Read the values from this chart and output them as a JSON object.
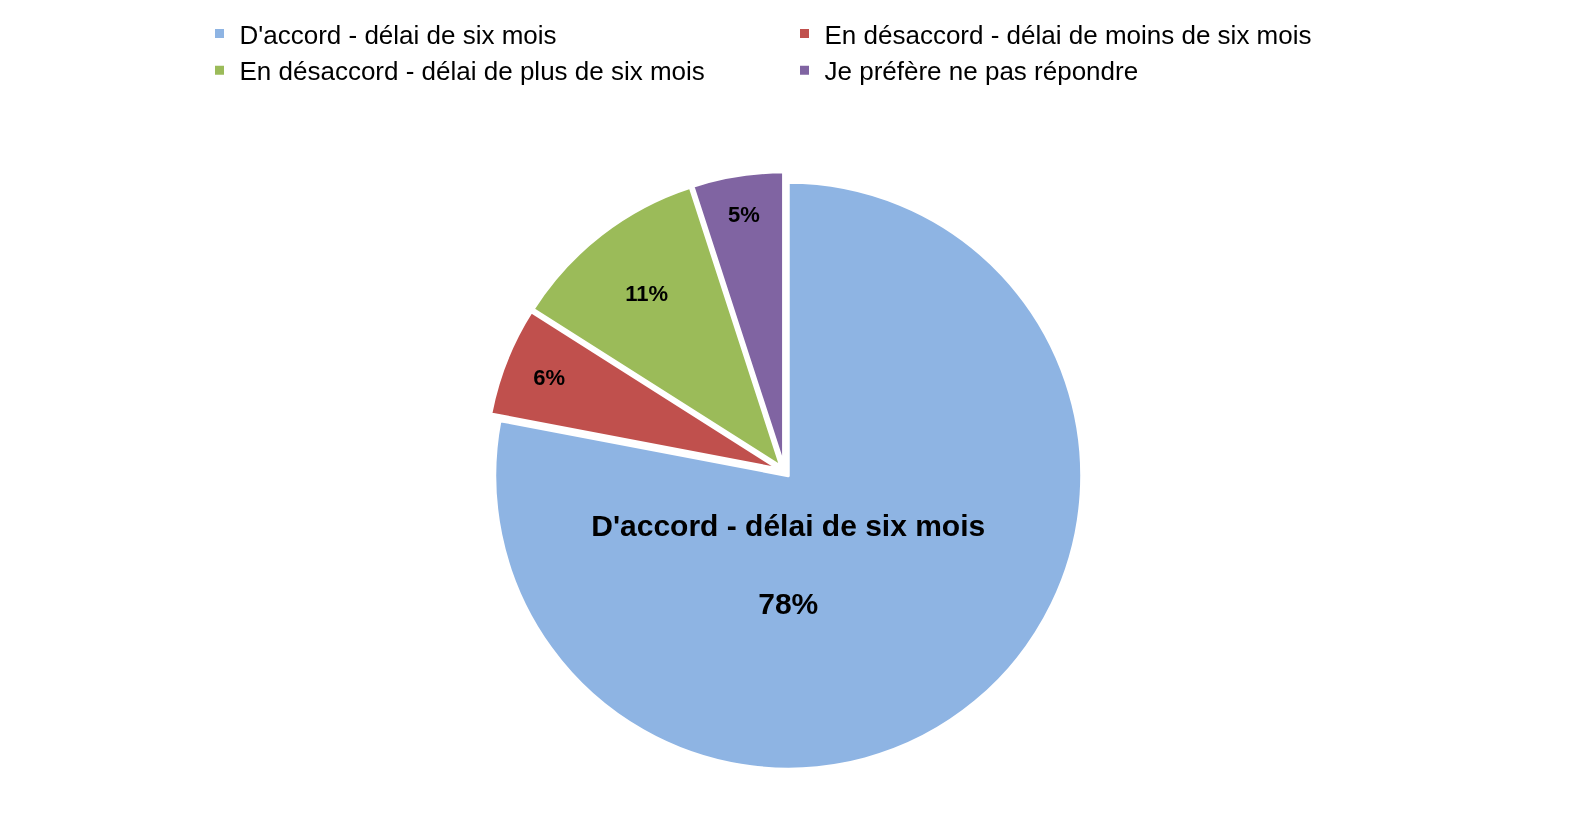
{
  "chart_data": {
    "type": "pie",
    "categories": [
      "D'accord - délai de six mois",
      "En désaccord - délai de moins de six mois",
      "En désaccord - délai de plus de six mois",
      "Je préfère ne pas répondre"
    ],
    "values": [
      78,
      6,
      11,
      5
    ],
    "colors": [
      "#8eb4e3",
      "#c0504d",
      "#9bbb59",
      "#8064a2"
    ],
    "value_labels": [
      "D'accord - délai de six mois\n\n78%",
      "6%",
      "11%",
      "5%"
    ],
    "legend": "top"
  }
}
